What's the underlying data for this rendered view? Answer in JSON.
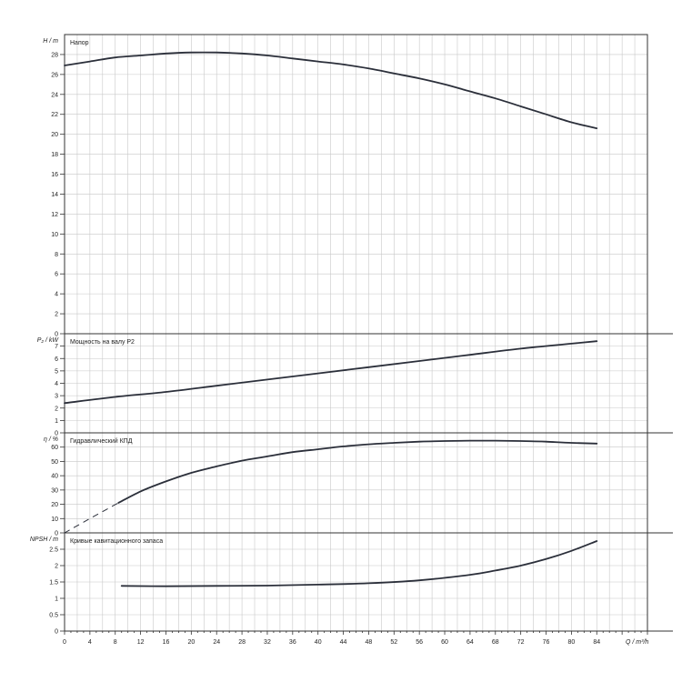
{
  "colors": {
    "background": "#ffffff",
    "grid": "#c8c8c8",
    "axis": "#333333",
    "curve": "#2b2f3a",
    "text": "#222222"
  },
  "x_axis": {
    "label": "Q / m³/h",
    "min": 0,
    "max": 92,
    "ticks": [
      0,
      4,
      8,
      12,
      16,
      20,
      24,
      28,
      32,
      36,
      40,
      44,
      48,
      52,
      56,
      60,
      64,
      68,
      72,
      76,
      80,
      84
    ]
  },
  "chart_data": [
    {
      "type": "line",
      "ylabel": "H / m",
      "title": "Напор",
      "ylim": [
        0,
        30
      ],
      "yticks": [
        0,
        2,
        4,
        6,
        8,
        10,
        12,
        14,
        16,
        18,
        20,
        22,
        24,
        26,
        28
      ],
      "series": [
        {
          "style": "solid",
          "x": [
            0,
            4,
            8,
            12,
            16,
            20,
            24,
            28,
            32,
            36,
            40,
            44,
            48,
            52,
            56,
            60,
            64,
            68,
            72,
            76,
            80,
            84
          ],
          "y": [
            26.9,
            27.3,
            27.7,
            27.9,
            28.1,
            28.2,
            28.2,
            28.1,
            27.9,
            27.6,
            27.3,
            27.0,
            26.6,
            26.1,
            25.6,
            25.0,
            24.3,
            23.6,
            22.8,
            22.0,
            21.2,
            20.6
          ]
        }
      ]
    },
    {
      "type": "line",
      "ylabel": "P₂ / kW",
      "title": "Мощность на валу P2",
      "ylim": [
        0,
        8
      ],
      "yticks": [
        0,
        1,
        2,
        3,
        4,
        5,
        6,
        7
      ],
      "series": [
        {
          "style": "solid",
          "x": [
            0,
            8,
            16,
            24,
            32,
            40,
            48,
            56,
            64,
            72,
            80,
            84
          ],
          "y": [
            2.4,
            2.9,
            3.3,
            3.8,
            4.3,
            4.8,
            5.3,
            5.8,
            6.3,
            6.8,
            7.2,
            7.4
          ]
        }
      ]
    },
    {
      "type": "line",
      "ylabel": "η / %",
      "title": "Гидравлический КПД",
      "ylim": [
        0,
        70
      ],
      "yticks": [
        0,
        10,
        20,
        30,
        40,
        50,
        60
      ],
      "series": [
        {
          "style": "dashed",
          "x": [
            0,
            4,
            8.5
          ],
          "y": [
            0,
            10,
            21
          ]
        },
        {
          "style": "solid",
          "x": [
            8.5,
            12,
            16,
            20,
            24,
            28,
            32,
            36,
            40,
            44,
            48,
            52,
            56,
            60,
            64,
            68,
            72,
            76,
            80,
            84
          ],
          "y": [
            21,
            29,
            36,
            42,
            46.5,
            50.5,
            53.5,
            56.5,
            58.5,
            60.5,
            62,
            63,
            63.8,
            64.3,
            64.5,
            64.5,
            64.3,
            63.8,
            63,
            62.5
          ]
        }
      ]
    },
    {
      "type": "line",
      "ylabel": "NPSH / m",
      "title": "Кривые кавитационного запаса",
      "ylim": [
        0,
        3
      ],
      "yticks": [
        0,
        0.5,
        1,
        1.5,
        2,
        2.5
      ],
      "series": [
        {
          "style": "solid",
          "x": [
            9,
            16,
            24,
            32,
            40,
            48,
            56,
            64,
            68,
            72,
            76,
            80,
            84
          ],
          "y": [
            1.38,
            1.37,
            1.38,
            1.39,
            1.42,
            1.46,
            1.55,
            1.72,
            1.85,
            2.0,
            2.2,
            2.45,
            2.75
          ]
        }
      ]
    }
  ]
}
